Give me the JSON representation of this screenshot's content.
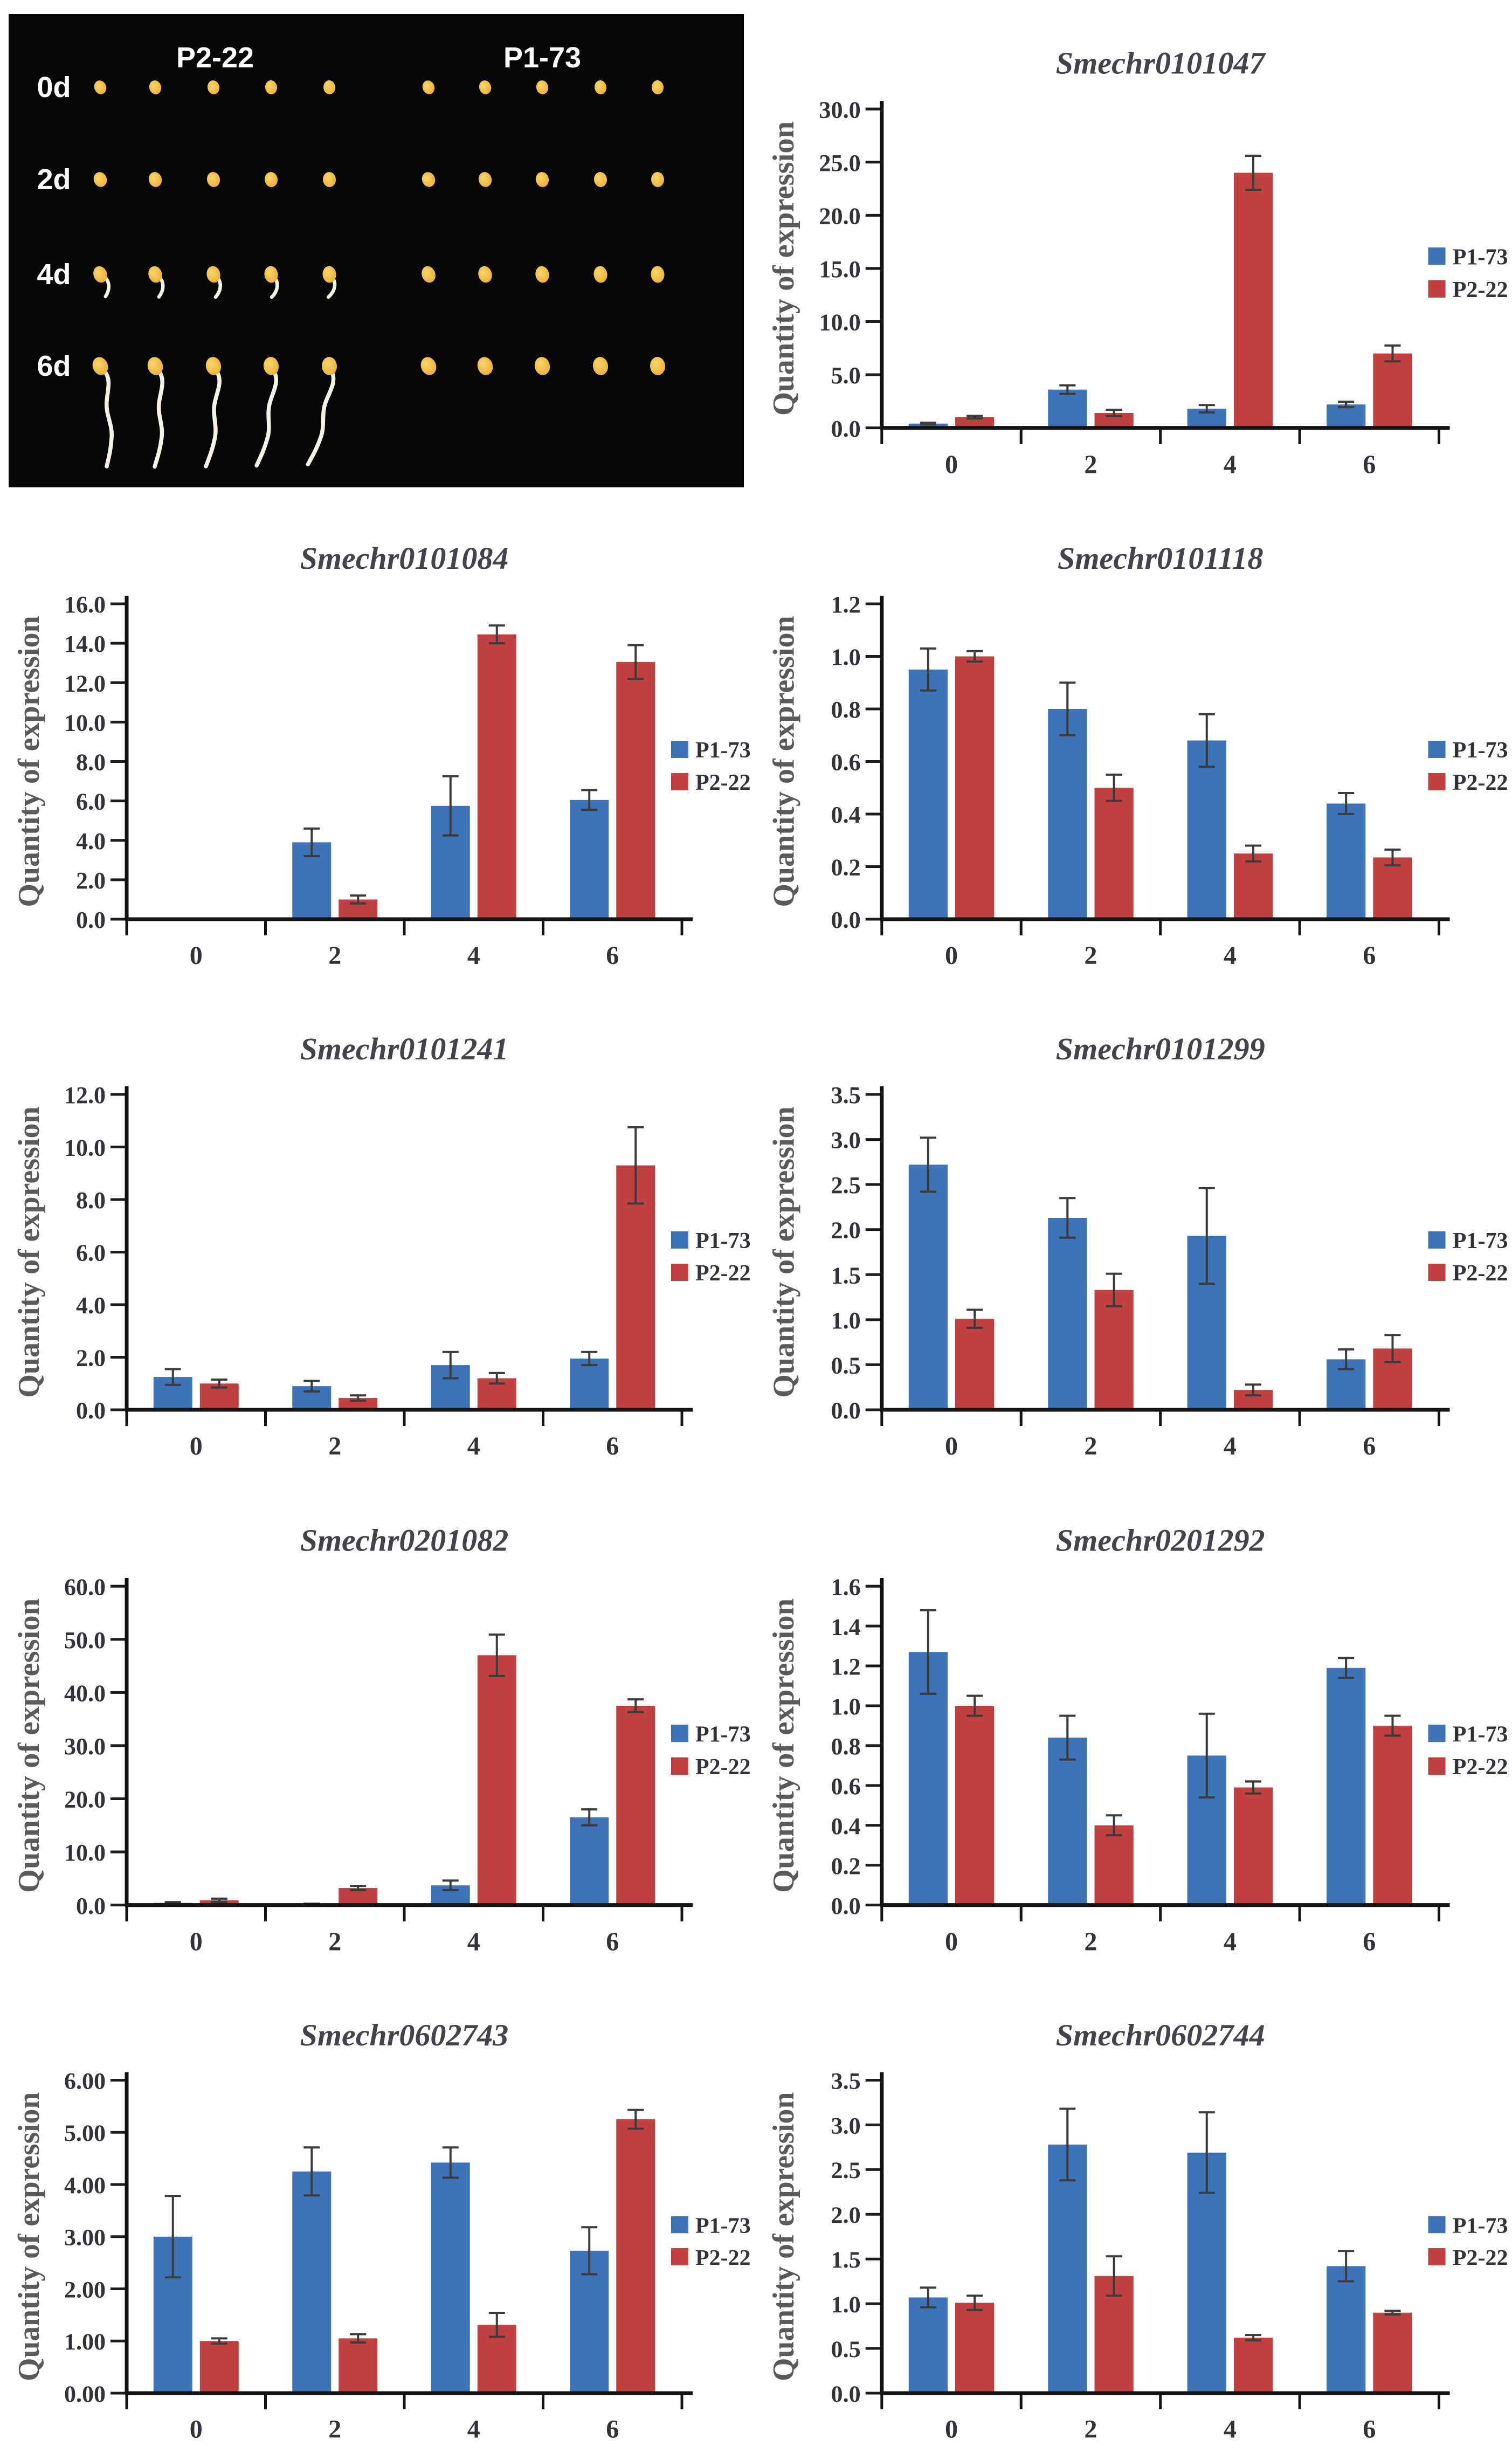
{
  "photo_panel": {
    "group_labels": [
      "P2-22",
      "P1-73"
    ],
    "row_labels": [
      "0d",
      "2d",
      "4d",
      "6d"
    ],
    "seeds_per_group": 5,
    "rows": [
      {
        "label": "0d",
        "P2-22": "seed",
        "P1-73": "seed"
      },
      {
        "label": "2d",
        "P2-22": "seed",
        "P1-73": "seed"
      },
      {
        "label": "4d",
        "P2-22": "radicle-emerged",
        "P1-73": "seed"
      },
      {
        "label": "6d",
        "P2-22": "seedling-with-root",
        "P1-73": "seed"
      }
    ],
    "colors": {
      "background": "#070707",
      "label": "#ffffff",
      "seed_light": "#F9D56C",
      "seed_dark": "#EBAD33",
      "root": "#F6F2E3"
    }
  },
  "series_colors": {
    "P1-73": "#3E73B8",
    "P2-22": "#C04240"
  },
  "chart_data": [
    {
      "type": "bar",
      "title": "Smechr0101047",
      "ylabel": "Quantity of expression",
      "ylim": [
        0,
        30
      ],
      "ystep": 5,
      "ydecimals": 1,
      "categories": [
        "0",
        "2",
        "4",
        "6"
      ],
      "legend_position": "right",
      "grid": false,
      "series": [
        {
          "name": "P1-73",
          "color": "#3E73B8",
          "values": [
            0.4,
            3.6,
            1.8,
            2.2
          ],
          "errors": [
            0.08,
            0.4,
            0.35,
            0.25
          ]
        },
        {
          "name": "P2-22",
          "color": "#C04240",
          "values": [
            1.0,
            1.4,
            24.0,
            7.0
          ],
          "errors": [
            0.12,
            0.3,
            1.6,
            0.75
          ]
        }
      ]
    },
    {
      "type": "bar",
      "title": "Smechr0101084",
      "ylabel": "Quantity of expression",
      "ylim": [
        0,
        16
      ],
      "ystep": 2,
      "ydecimals": 1,
      "categories": [
        "0",
        "2",
        "4",
        "6"
      ],
      "legend_position": "right",
      "grid": false,
      "series": [
        {
          "name": "P1-73",
          "color": "#3E73B8",
          "values": [
            0,
            3.9,
            5.75,
            6.05
          ],
          "errors": [
            0,
            0.7,
            1.5,
            0.5
          ]
        },
        {
          "name": "P2-22",
          "color": "#C04240",
          "values": [
            0,
            1.0,
            14.45,
            13.05
          ],
          "errors": [
            0,
            0.2,
            0.45,
            0.85
          ]
        }
      ]
    },
    {
      "type": "bar",
      "title": "Smechr0101118",
      "ylabel": "Quantity of expression",
      "ylim": [
        0,
        1.2
      ],
      "ystep": 0.2,
      "ydecimals": 1,
      "categories": [
        "0",
        "2",
        "4",
        "6"
      ],
      "legend_position": "right",
      "grid": false,
      "series": [
        {
          "name": "P1-73",
          "color": "#3E73B8",
          "values": [
            0.95,
            0.8,
            0.68,
            0.44
          ],
          "errors": [
            0.08,
            0.1,
            0.1,
            0.04
          ]
        },
        {
          "name": "P2-22",
          "color": "#C04240",
          "values": [
            1.0,
            0.5,
            0.25,
            0.235
          ],
          "errors": [
            0.02,
            0.05,
            0.03,
            0.03
          ]
        }
      ]
    },
    {
      "type": "bar",
      "title": "Smechr0101241",
      "ylabel": "Quantity of expression",
      "ylim": [
        0,
        12
      ],
      "ystep": 2,
      "ydecimals": 1,
      "categories": [
        "0",
        "2",
        "4",
        "6"
      ],
      "legend_position": "right",
      "grid": false,
      "series": [
        {
          "name": "P1-73",
          "color": "#3E73B8",
          "values": [
            1.25,
            0.9,
            1.7,
            1.95
          ],
          "errors": [
            0.3,
            0.2,
            0.5,
            0.25
          ]
        },
        {
          "name": "P2-22",
          "color": "#C04240",
          "values": [
            1.0,
            0.45,
            1.2,
            9.3
          ],
          "errors": [
            0.15,
            0.1,
            0.2,
            1.45
          ]
        }
      ]
    },
    {
      "type": "bar",
      "title": "Smechr0101299",
      "ylabel": "Quantity of expression",
      "ylim": [
        0,
        3.5
      ],
      "ystep": 0.5,
      "ydecimals": 1,
      "categories": [
        "0",
        "2",
        "4",
        "6"
      ],
      "legend_position": "right",
      "grid": false,
      "series": [
        {
          "name": "P1-73",
          "color": "#3E73B8",
          "values": [
            2.72,
            2.13,
            1.93,
            0.56
          ],
          "errors": [
            0.3,
            0.22,
            0.53,
            0.11
          ]
        },
        {
          "name": "P2-22",
          "color": "#C04240",
          "values": [
            1.01,
            1.33,
            0.22,
            0.68
          ],
          "errors": [
            0.1,
            0.18,
            0.06,
            0.15
          ]
        }
      ]
    },
    {
      "type": "bar",
      "title": "Smechr0201082",
      "ylabel": "Quantity of expression",
      "ylim": [
        0,
        60
      ],
      "ystep": 10,
      "ydecimals": 1,
      "categories": [
        "0",
        "2",
        "4",
        "6"
      ],
      "legend_position": "right",
      "grid": false,
      "series": [
        {
          "name": "P1-73",
          "color": "#3E73B8",
          "values": [
            0.4,
            0.2,
            3.7,
            16.5
          ],
          "errors": [
            0.15,
            0.05,
            0.9,
            1.5
          ]
        },
        {
          "name": "P2-22",
          "color": "#C04240",
          "values": [
            0.9,
            3.2,
            47.0,
            37.5
          ],
          "errors": [
            0.3,
            0.4,
            3.9,
            1.2
          ]
        }
      ]
    },
    {
      "type": "bar",
      "title": "Smechr0201292",
      "ylabel": "Quantity of expression",
      "ylim": [
        0,
        1.6
      ],
      "ystep": 0.2,
      "ydecimals": 1,
      "categories": [
        "0",
        "2",
        "4",
        "6"
      ],
      "legend_position": "right",
      "grid": false,
      "series": [
        {
          "name": "P1-73",
          "color": "#3E73B8",
          "values": [
            1.27,
            0.84,
            0.75,
            1.19
          ],
          "errors": [
            0.21,
            0.11,
            0.21,
            0.05
          ]
        },
        {
          "name": "P2-22",
          "color": "#C04240",
          "values": [
            1.0,
            0.4,
            0.59,
            0.9
          ],
          "errors": [
            0.05,
            0.05,
            0.03,
            0.05
          ]
        }
      ]
    },
    {
      "type": "bar",
      "title": "Smechr0602743",
      "ylabel": "Quantity of expression",
      "ylim": [
        0,
        6
      ],
      "ystep": 1,
      "ydecimals": 2,
      "categories": [
        "0",
        "2",
        "4",
        "6"
      ],
      "legend_position": "right",
      "grid": false,
      "series": [
        {
          "name": "P1-73",
          "color": "#3E73B8",
          "values": [
            3.0,
            4.25,
            4.42,
            2.73
          ],
          "errors": [
            0.78,
            0.46,
            0.29,
            0.45
          ]
        },
        {
          "name": "P2-22",
          "color": "#C04240",
          "values": [
            1.0,
            1.05,
            1.31,
            5.25
          ],
          "errors": [
            0.05,
            0.08,
            0.23,
            0.18
          ]
        }
      ]
    },
    {
      "type": "bar",
      "title": "Smechr0602744",
      "ylabel": "Quantity of expression",
      "ylim": [
        0,
        3.5
      ],
      "ystep": 0.5,
      "ydecimals": 1,
      "categories": [
        "0",
        "2",
        "4",
        "6"
      ],
      "legend_position": "right",
      "grid": false,
      "series": [
        {
          "name": "P1-73",
          "color": "#3E73B8",
          "values": [
            1.07,
            2.78,
            2.69,
            1.42
          ],
          "errors": [
            0.11,
            0.4,
            0.45,
            0.17
          ]
        },
        {
          "name": "P2-22",
          "color": "#C04240",
          "values": [
            1.01,
            1.31,
            0.62,
            0.9
          ],
          "errors": [
            0.08,
            0.22,
            0.03,
            0.02
          ]
        }
      ]
    }
  ]
}
